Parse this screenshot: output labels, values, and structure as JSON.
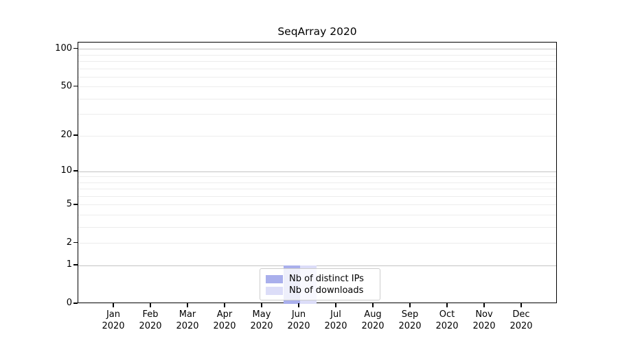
{
  "chart_data": {
    "type": "bar",
    "title": "SeqArray 2020",
    "categories": [
      "Jan",
      "Feb",
      "Mar",
      "Apr",
      "May",
      "Jun",
      "Jul",
      "Aug",
      "Sep",
      "Oct",
      "Nov",
      "Dec"
    ],
    "x_tick_year": "2020",
    "series": [
      {
        "name": "Nb of distinct IPs",
        "color": "#a9afec",
        "values": [
          0,
          0,
          0,
          0,
          0,
          1,
          0,
          0,
          0,
          0,
          0,
          0
        ]
      },
      {
        "name": "Nb of downloads",
        "color": "#dcddf8",
        "values": [
          0,
          0,
          0,
          0,
          0,
          1,
          0,
          0,
          0,
          0,
          0,
          0
        ]
      }
    ],
    "y_axis": {
      "scale": "log1p",
      "ylim": [
        0,
        113
      ],
      "tick_values": [
        0,
        1,
        2,
        5,
        10,
        20,
        50,
        100
      ],
      "tick_labels": [
        "0",
        "1",
        "2",
        "5",
        "10",
        "20",
        "50",
        "100"
      ],
      "major_grid": [
        1,
        10,
        100
      ],
      "minor_grid": [
        2,
        3,
        4,
        5,
        6,
        7,
        8,
        9,
        20,
        30,
        40,
        50,
        60,
        70,
        80,
        90
      ]
    },
    "grid": true,
    "legend_position": "bottom-center",
    "colors": {
      "axis": "#000000",
      "major_grid": "#c3c3c3",
      "minor_grid": "#ececec",
      "legend_border": "#cccccc"
    }
  }
}
